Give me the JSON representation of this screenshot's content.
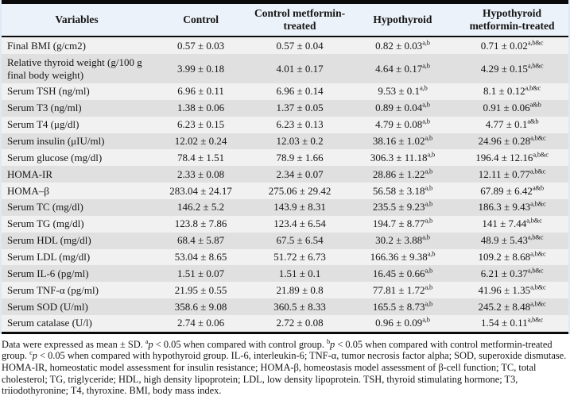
{
  "colors": {
    "header_bg": "#ecf2f9",
    "row_light": "#f1f1f1",
    "row_dark": "#e0e0e0",
    "rule": "#0a0a0a",
    "edge": "#dde9f6"
  },
  "table": {
    "columns": [
      "Variables",
      "Control",
      "Control metformin-treated",
      "Hypothyroid",
      "Hypothyroid metformin-treated"
    ],
    "rows": [
      {
        "variable": "Final BMI (g/cm2)",
        "values": [
          "0.57 ± 0.03",
          "0.57 ± 0.04",
          "0.82 ± 0.03",
          "0.71 ± 0.02"
        ],
        "sups": [
          "",
          "",
          "a,b",
          "a,b&c"
        ]
      },
      {
        "variable": "Relative thyroid weight (g/100 g final body weight)",
        "values": [
          "3.99 ± 0.18",
          "4.01 ± 0.17",
          "4.64 ± 0.17",
          "4.29 ± 0.15"
        ],
        "sups": [
          "",
          "",
          "a,b",
          "a,b&c"
        ]
      },
      {
        "variable": "Serum TSH (ng/ml)",
        "values": [
          "6.96 ± 0.11",
          "6.96 ± 0.14",
          "9.53 ± 0.1",
          "8.1 ± 0.12"
        ],
        "sups": [
          "",
          "",
          "a,b",
          "a,b&c"
        ]
      },
      {
        "variable": "Serum T3 (ng/ml)",
        "values": [
          "1.38 ± 0.06",
          "1.37 ± 0.05",
          "0.89 ± 0.04",
          "0.91 ± 0.06"
        ],
        "sups": [
          "",
          "",
          "a,b",
          "a&b"
        ]
      },
      {
        "variable": "Serum T4 (μg/dl)",
        "values": [
          "6.23 ± 0.15",
          "6.23 ± 0.13",
          "4.79 ± 0.08",
          "4.77 ± 0.1"
        ],
        "sups": [
          "",
          "",
          "a,b",
          "a&b"
        ]
      },
      {
        "variable": "Serum insulin (μIU/ml)",
        "values": [
          "12.02 ± 0.24",
          "12.03 ± 0.2",
          "38.16 ± 1.02",
          "24.96 ± 0.28"
        ],
        "sups": [
          "",
          "",
          "a,b",
          "a,b&c"
        ]
      },
      {
        "variable": "Serum glucose (mg/dl)",
        "values": [
          "78.4 ± 1.51",
          "78.9 ± 1.66",
          "306.3 ± 11.18",
          "196.4 ± 12.16"
        ],
        "sups": [
          "",
          "",
          "a,b",
          "a,b&c"
        ]
      },
      {
        "variable": "HOMA-IR",
        "values": [
          "2.33 ± 0.08",
          "2.34 ± 0.07",
          "28.86 ± 1.22",
          "12.11 ± 0.77"
        ],
        "sups": [
          "",
          "",
          "a,b",
          "a,b&c"
        ]
      },
      {
        "variable": "HOMA–β",
        "values": [
          "283.04 ± 24.17",
          "275.06 ± 29.42",
          "56.58 ± 3.18",
          "67.89 ± 6.42"
        ],
        "sups": [
          "",
          "",
          "a,b",
          "a&b"
        ]
      },
      {
        "variable": "Serum TC (mg/dl)",
        "values": [
          "146.2 ± 5.2",
          "143.9 ± 8.31",
          "235.5 ± 9.23",
          "186.3 ± 9.43"
        ],
        "sups": [
          "",
          "",
          "a,b",
          "a,b&c"
        ]
      },
      {
        "variable": "Serum TG (mg/dl)",
        "values": [
          "123.8 ± 7.86",
          "123.4 ± 6.54",
          "194.7 ± 8.77",
          "141 ± 7.44"
        ],
        "sups": [
          "",
          "",
          "a,b",
          "a,b&c"
        ]
      },
      {
        "variable": "Serum HDL (mg/dl)",
        "values": [
          "68.4 ± 5.87",
          "67.5 ± 6.54",
          "30.2 ± 3.88",
          "48.9 ± 5.43"
        ],
        "sups": [
          "",
          "",
          "a,b",
          "a,b&c"
        ]
      },
      {
        "variable": "Serum LDL (mg/dl)",
        "values": [
          "53.04 ± 8.65",
          "51.72 ± 6.73",
          "166.36 ± 9.38",
          "109.2 ± 8.68"
        ],
        "sups": [
          "",
          "",
          "a,b",
          "a,b&c"
        ]
      },
      {
        "variable": "Serum IL-6 (pg/ml)",
        "values": [
          "1.51 ± 0.07",
          "1.51 ± 0.1",
          "16.45 ± 0.66",
          "6.21 ± 0.37"
        ],
        "sups": [
          "",
          "",
          "a,b",
          "a,b&c"
        ]
      },
      {
        "variable": "Serum TNF-α (pg/ml)",
        "values": [
          "21.95 ± 0.55",
          "21.89 ± 0.8",
          "77.81 ± 1.72",
          "41.96 ± 1.35"
        ],
        "sups": [
          "",
          "",
          "a,b",
          "a,b&c"
        ]
      },
      {
        "variable": "Serum SOD (U/ml)",
        "values": [
          "358.6 ± 9.08",
          "360.5 ± 8.33",
          "165.5 ± 8.73",
          "245.2 ± 8.48"
        ],
        "sups": [
          "",
          "",
          "a,b",
          "a,b&c"
        ]
      },
      {
        "variable": "Serum catalase (U/l)",
        "values": [
          "2.74 ± 0.06",
          "2.72 ± 0.08",
          "0.96 ± 0.09",
          "1.54 ± 0.11"
        ],
        "sups": [
          "",
          "",
          "a,b",
          "a,b&c"
        ]
      }
    ]
  },
  "footnote": {
    "segments": [
      {
        "t": "Data were expressed as mean ± SD. ",
        "s": ""
      },
      {
        "t": "a",
        "s": "sup"
      },
      {
        "t": "p",
        "s": "i"
      },
      {
        "t": " < 0.05 when compared with control group. ",
        "s": ""
      },
      {
        "t": "b",
        "s": "sup"
      },
      {
        "t": "p",
        "s": "i"
      },
      {
        "t": " < 0.05 when compared with control metformin-treated group. ",
        "s": ""
      },
      {
        "t": "c",
        "s": "sup"
      },
      {
        "t": "p",
        "s": "i"
      },
      {
        "t": " < 0.05 when compared with hypothyroid group. IL-6, interleukin-6; TNF-α, tumor necrosis factor alpha; SOD, superoxide dismutase. HOMA-IR, homeostatic model assessment for insulin resistance; HOMA-β, homeostasis model assessment of β-cell function; TC, total cholesterol; TG, triglyceride; HDL, high density lipoprotein; LDL, low density lipoprotein. TSH, thyroid stimulating hormone; T3, triiodothyronine; T4, thyroxine. BMI, body mass index.",
        "s": ""
      }
    ]
  }
}
